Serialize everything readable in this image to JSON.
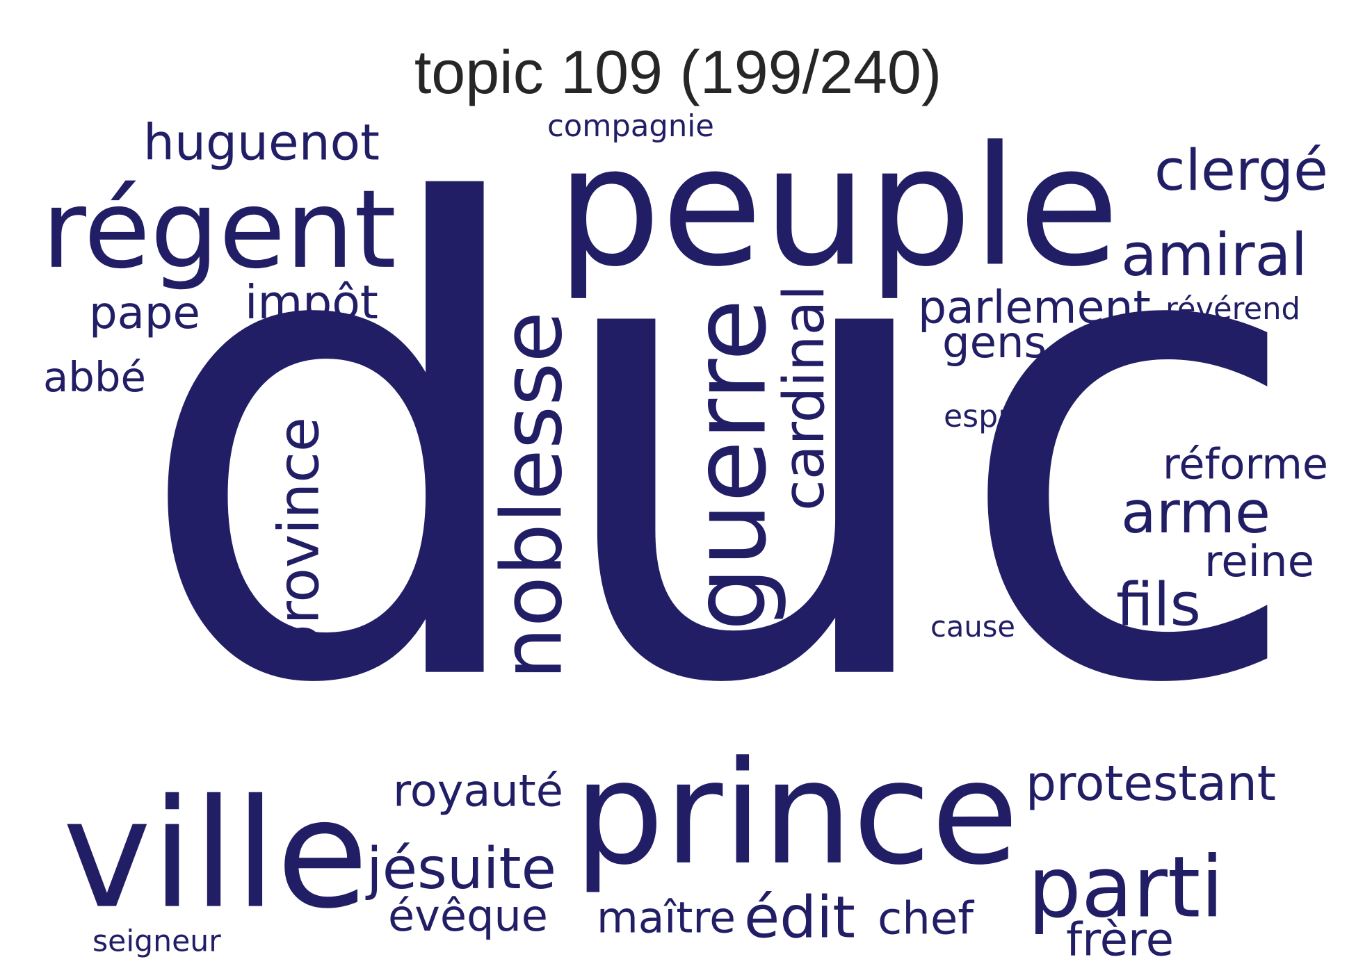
{
  "title": "topic 109 (199/240)",
  "color": "#211e66",
  "words": [
    {
      "text": "duc",
      "orientation": "horizontal"
    },
    {
      "text": "peuple",
      "orientation": "horizontal"
    },
    {
      "text": "prince",
      "orientation": "horizontal"
    },
    {
      "text": "ville",
      "orientation": "horizontal"
    },
    {
      "text": "régent",
      "orientation": "horizontal"
    },
    {
      "text": "noblesse",
      "orientation": "vertical"
    },
    {
      "text": "guerre",
      "orientation": "vertical"
    },
    {
      "text": "parti",
      "orientation": "horizontal"
    },
    {
      "text": "province",
      "orientation": "vertical"
    },
    {
      "text": "cardinal",
      "orientation": "vertical"
    },
    {
      "text": "huguenot",
      "orientation": "horizontal"
    },
    {
      "text": "clergé",
      "orientation": "horizontal"
    },
    {
      "text": "amiral",
      "orientation": "horizontal"
    },
    {
      "text": "parlement",
      "orientation": "horizontal"
    },
    {
      "text": "protestant",
      "orientation": "horizontal"
    },
    {
      "text": "jésuite",
      "orientation": "horizontal"
    },
    {
      "text": "arme",
      "orientation": "horizontal"
    },
    {
      "text": "fils",
      "orientation": "horizontal"
    },
    {
      "text": "impôt",
      "orientation": "horizontal"
    },
    {
      "text": "édit",
      "orientation": "horizontal"
    },
    {
      "text": "royauté",
      "orientation": "horizontal"
    },
    {
      "text": "réforme",
      "orientation": "horizontal"
    },
    {
      "text": "reine",
      "orientation": "horizontal"
    },
    {
      "text": "évêque",
      "orientation": "horizontal"
    },
    {
      "text": "maître",
      "orientation": "horizontal"
    },
    {
      "text": "chef",
      "orientation": "horizontal"
    },
    {
      "text": "frère",
      "orientation": "horizontal"
    },
    {
      "text": "pape",
      "orientation": "horizontal"
    },
    {
      "text": "gens",
      "orientation": "horizontal"
    },
    {
      "text": "abbé",
      "orientation": "horizontal"
    },
    {
      "text": "compagnie",
      "orientation": "horizontal"
    },
    {
      "text": "révérend",
      "orientation": "horizontal"
    },
    {
      "text": "esprit",
      "orientation": "horizontal"
    },
    {
      "text": "cause",
      "orientation": "horizontal"
    },
    {
      "text": "seigneur",
      "orientation": "horizontal"
    }
  ]
}
